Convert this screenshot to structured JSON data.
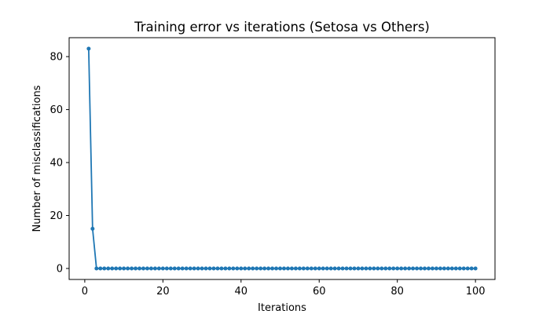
{
  "chart_data": {
    "type": "line",
    "title": "Training error vs iterations (Setosa vs Others)",
    "xlabel": "Iterations",
    "ylabel": "Number of misclassifications",
    "x_ticks": [
      0,
      20,
      40,
      60,
      80,
      100
    ],
    "y_ticks": [
      0,
      20,
      40,
      60,
      80
    ],
    "xlim": [
      -4,
      105
    ],
    "ylim": [
      -4.15,
      87.15
    ],
    "grid": false,
    "series": [
      {
        "color": "#1f77b4",
        "marker": "circle",
        "x": [
          1,
          2,
          3,
          4,
          5,
          6,
          7,
          8,
          9,
          10,
          11,
          12,
          13,
          14,
          15,
          16,
          17,
          18,
          19,
          20,
          21,
          22,
          23,
          24,
          25,
          26,
          27,
          28,
          29,
          30,
          31,
          32,
          33,
          34,
          35,
          36,
          37,
          38,
          39,
          40,
          41,
          42,
          43,
          44,
          45,
          46,
          47,
          48,
          49,
          50,
          51,
          52,
          53,
          54,
          55,
          56,
          57,
          58,
          59,
          60,
          61,
          62,
          63,
          64,
          65,
          66,
          67,
          68,
          69,
          70,
          71,
          72,
          73,
          74,
          75,
          76,
          77,
          78,
          79,
          80,
          81,
          82,
          83,
          84,
          85,
          86,
          87,
          88,
          89,
          90,
          91,
          92,
          93,
          94,
          95,
          96,
          97,
          98,
          99,
          100
        ],
        "values": [
          83,
          15,
          0,
          0,
          0,
          0,
          0,
          0,
          0,
          0,
          0,
          0,
          0,
          0,
          0,
          0,
          0,
          0,
          0,
          0,
          0,
          0,
          0,
          0,
          0,
          0,
          0,
          0,
          0,
          0,
          0,
          0,
          0,
          0,
          0,
          0,
          0,
          0,
          0,
          0,
          0,
          0,
          0,
          0,
          0,
          0,
          0,
          0,
          0,
          0,
          0,
          0,
          0,
          0,
          0,
          0,
          0,
          0,
          0,
          0,
          0,
          0,
          0,
          0,
          0,
          0,
          0,
          0,
          0,
          0,
          0,
          0,
          0,
          0,
          0,
          0,
          0,
          0,
          0,
          0,
          0,
          0,
          0,
          0,
          0,
          0,
          0,
          0,
          0,
          0,
          0,
          0,
          0,
          0,
          0,
          0,
          0,
          0,
          0,
          0
        ]
      }
    ]
  }
}
